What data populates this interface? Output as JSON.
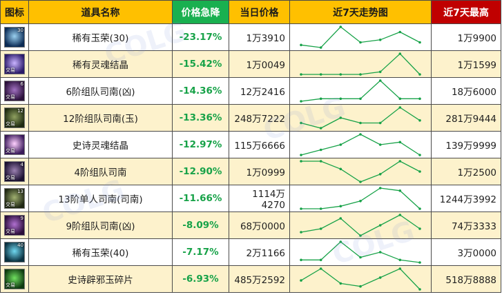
{
  "header": {
    "icon_col": "图标",
    "name_col": "道具名称",
    "drop_col": "价格急降",
    "price_col": "当日价格",
    "trend_col": "近7天走势图",
    "max_col": "近7天最高"
  },
  "colors": {
    "header_bg": "#ffc000",
    "drop_header_bg": "#19b050",
    "max_header_bg": "#c00000",
    "drop_text": "#17a248",
    "spark_line": "#17a248",
    "row_alt_bg": "#fdf2cc"
  },
  "rows": [
    {
      "icon": "rare-jade-icon",
      "icon_colors": [
        "#0b2b55",
        "#9ad0f0"
      ],
      "badge": "",
      "level": "30",
      "name": "稀有玉荣(30)",
      "drop": "-23.17%",
      "price": "1万3910",
      "max": "1万9900",
      "trend": [
        2,
        1,
        9,
        3,
        4,
        7,
        3
      ]
    },
    {
      "icon": "rare-soul-crystal-icon",
      "icon_colors": [
        "#2a1a6a",
        "#c9b3ff"
      ],
      "badge": "交易",
      "level": "",
      "name": "稀有灵魂结晶",
      "drop": "-15.42%",
      "price": "1万0049",
      "max": "1万1599",
      "trend": [
        1,
        1,
        1,
        1,
        2,
        9,
        1
      ]
    },
    {
      "icon": "team-compass-fierce-icon",
      "icon_colors": [
        "#2a103a",
        "#a070c0"
      ],
      "badge": "交易",
      "level": "6",
      "name": "6阶组队司南(凶)",
      "drop": "-14.36%",
      "price": "12万2416",
      "max": "18万6000",
      "trend": [
        1,
        2,
        2,
        2,
        9,
        2,
        2
      ]
    },
    {
      "icon": "team-compass-jade-icon",
      "icon_colors": [
        "#1e2a10",
        "#8fa060"
      ],
      "badge": "交易",
      "level": "12",
      "name": "12阶组队司南(玉)",
      "drop": "-13.36%",
      "price": "248万7222",
      "max": "281万9444",
      "trend": [
        3,
        1,
        5,
        3,
        3,
        9,
        4
      ]
    },
    {
      "icon": "epic-soul-crystal-icon",
      "icon_colors": [
        "#3a1a5a",
        "#ffd0ff"
      ],
      "badge": "交易",
      "level": "",
      "name": "史诗灵魂结晶",
      "drop": "-12.97%",
      "price": "115万6666",
      "max": "139万9999",
      "trend": [
        1,
        3,
        5,
        9,
        5,
        6,
        1
      ]
    },
    {
      "icon": "team-compass-icon",
      "icon_colors": [
        "#1a1030",
        "#9a80b0"
      ],
      "badge": "交易",
      "level": "4",
      "name": "4阶组队司南",
      "drop": "-12.90%",
      "price": "1万0999",
      "max": "1万2500",
      "trend": [
        9,
        9,
        6,
        1,
        4,
        9,
        5
      ]
    },
    {
      "icon": "solo-compass-icon",
      "icon_colors": [
        "#202814",
        "#a0b070"
      ],
      "badge": "交易",
      "level": "13",
      "name": "13阶单人司南(司南)",
      "drop": "-11.66%",
      "price": "1114万4270",
      "max": "1244万3992",
      "trend": [
        1,
        1,
        2,
        4,
        9,
        8,
        1
      ]
    },
    {
      "icon": "team-compass-fierce-icon",
      "icon_colors": [
        "#2a0e3a",
        "#b070d0"
      ],
      "badge": "交易",
      "level": "9",
      "name": "9阶组队司南(凶)",
      "drop": "-8.09%",
      "price": "68万0000",
      "max": "74万3333",
      "trend": [
        4,
        5,
        8,
        3,
        6,
        9,
        5
      ]
    },
    {
      "icon": "rare-jade-icon",
      "icon_colors": [
        "#0a3040",
        "#70d8f0"
      ],
      "badge": "",
      "level": "40",
      "name": "稀有玉荣(40)",
      "drop": "-7.17%",
      "price": "2万1166",
      "max": "3万0000",
      "trend": [
        2,
        2,
        9,
        3,
        5,
        2,
        1
      ]
    },
    {
      "icon": "epic-evil-jade-icon",
      "icon_colors": [
        "#0e3a10",
        "#70e060"
      ],
      "badge": "交易",
      "level": "",
      "name": "史诗辟邪玉碎片",
      "drop": "-6.93%",
      "price": "485万2592",
      "max": "518万8888",
      "trend": [
        5,
        9,
        4,
        3,
        6,
        9,
        2
      ]
    }
  ]
}
